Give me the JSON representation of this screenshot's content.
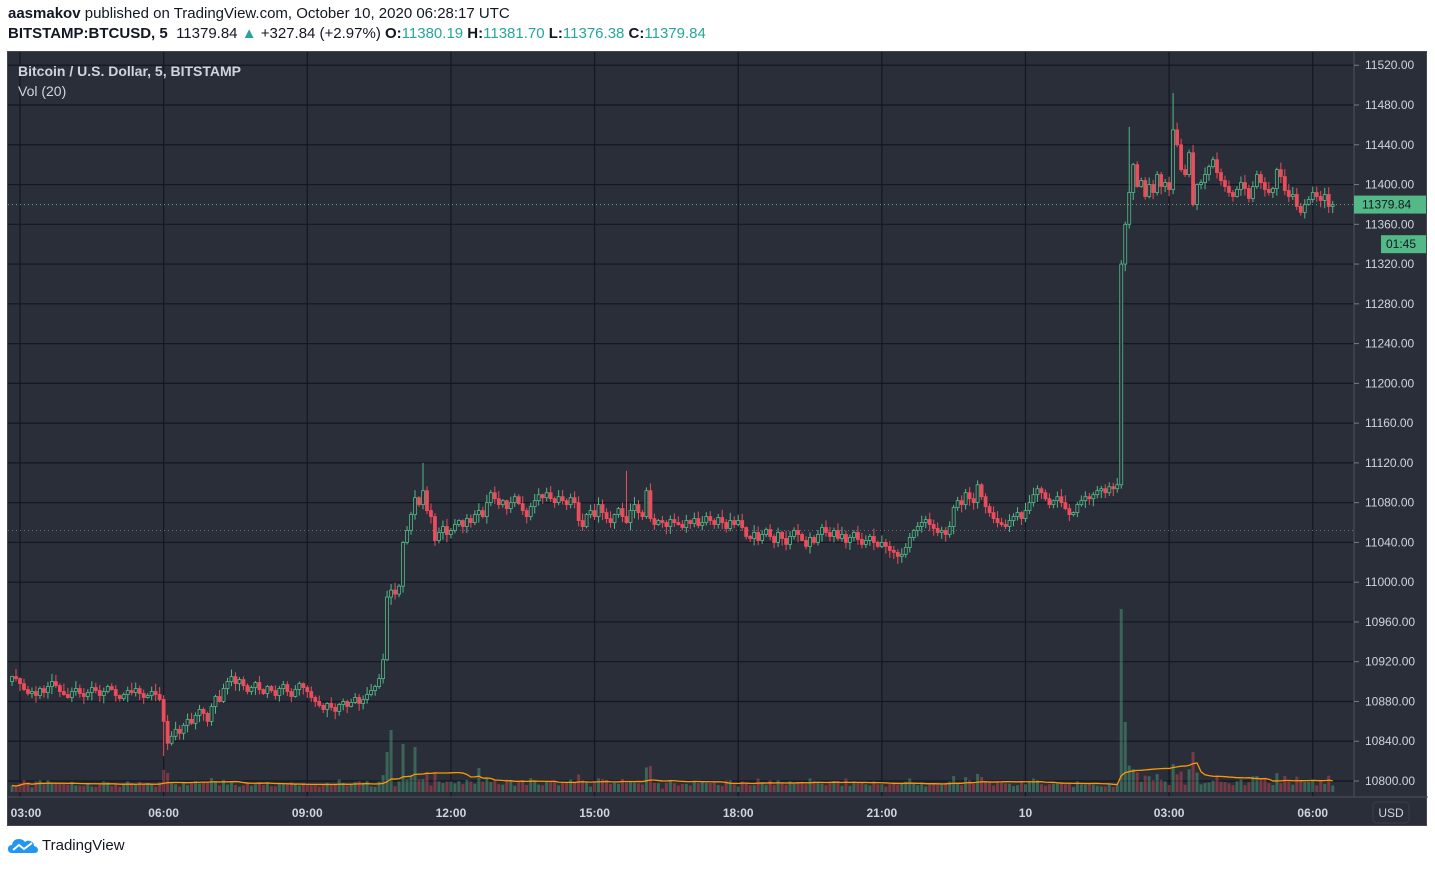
{
  "header": {
    "author": "aasmakov",
    "published": "published on TradingView.com, October 10, 2020 06:28:17 UTC",
    "symbol": "BITSTAMP:BTCUSD, 5",
    "last": "11379.84",
    "change_icon": "triangle-up-icon",
    "change": "+327.84 (+2.97%)",
    "o_label": "O:",
    "o": "11380.19",
    "h_label": "H:",
    "h": "11381.70",
    "l_label": "L:",
    "l": "11376.38",
    "c_label": "C:",
    "c": "11379.84"
  },
  "legend": {
    "title": "Bitcoin / U.S. Dollar, 5, BITSTAMP",
    "vol": "Vol (20)"
  },
  "price_axis": {
    "currency": "USD",
    "last_price_label": "11379.84",
    "countdown": "01:45"
  },
  "footer": {
    "brand": "TradingView",
    "logo_icon": "tradingview-cloud-logo"
  },
  "colors": {
    "up": "#53b987",
    "down": "#eb4d5c",
    "volume_ma": "#ff9800",
    "background": "#2a2e39",
    "last_price": "#53b987"
  },
  "chart_data": {
    "type": "candlestick",
    "interval_minutes": 5,
    "start": "2020-10-09 02:50",
    "ylim": [
      10790,
      11525
    ],
    "yticks": [
      10800,
      10840,
      10880,
      10920,
      10960,
      11000,
      11040,
      11080,
      11120,
      11160,
      11200,
      11240,
      11280,
      11320,
      11360,
      11400,
      11440,
      11480,
      11520
    ],
    "xticks": [
      {
        "label": "03:00",
        "time": "2020-10-09 03:00"
      },
      {
        "label": "06:00",
        "time": "2020-10-09 06:00"
      },
      {
        "label": "09:00",
        "time": "2020-10-09 09:00"
      },
      {
        "label": "12:00",
        "time": "2020-10-09 12:00"
      },
      {
        "label": "15:00",
        "time": "2020-10-09 15:00"
      },
      {
        "label": "18:00",
        "time": "2020-10-09 18:00"
      },
      {
        "label": "21:00",
        "time": "2020-10-09 21:00"
      },
      {
        "label": "10",
        "time": "2020-10-10 00:00"
      },
      {
        "label": "03:00",
        "time": "2020-10-10 03:00"
      },
      {
        "label": "06:00",
        "time": "2020-10-10 06:00"
      }
    ],
    "grid": true,
    "previous_close_line": 11052,
    "last_price": 11379.84,
    "first_open": 10900,
    "closes": [
      10905,
      10903,
      10898,
      10892,
      10888,
      10890,
      10886,
      10893,
      10889,
      10895,
      10900,
      10896,
      10890,
      10887,
      10884,
      10890,
      10893,
      10888,
      10885,
      10889,
      10894,
      10891,
      10886,
      10890,
      10895,
      10892,
      10886,
      10883,
      10887,
      10891,
      10889,
      10893,
      10888,
      10884,
      10886,
      10890,
      10887,
      10882,
      10860,
      10838,
      10845,
      10852,
      10848,
      10856,
      10862,
      10858,
      10866,
      10872,
      10868,
      10860,
      10875,
      10885,
      10880,
      10893,
      10900,
      10905,
      10898,
      10902,
      10896,
      10890,
      10894,
      10899,
      10892,
      10888,
      10895,
      10891,
      10886,
      10893,
      10897,
      10890,
      10885,
      10892,
      10898,
      10894,
      10890,
      10884,
      10880,
      10876,
      10872,
      10878,
      10874,
      10870,
      10877,
      10880,
      10875,
      10879,
      10884,
      10878,
      10882,
      10887,
      10891,
      10895,
      10903,
      10922,
      10985,
      10992,
      10988,
      10996,
      11040,
      11052,
      11068,
      11085,
      11078,
      11092,
      11072,
      11066,
      11042,
      11050,
      11056,
      11048,
      11052,
      11058,
      11062,
      11056,
      11064,
      11060,
      11068,
      11072,
      11066,
      11080,
      11090,
      11084,
      11078,
      11082,
      11074,
      11080,
      11086,
      11079,
      11072,
      11066,
      11076,
      11082,
      11088,
      11085,
      11090,
      11084,
      11080,
      11086,
      11082,
      11078,
      11085,
      11080,
      11062,
      11056,
      11068,
      11072,
      11066,
      11078,
      11070,
      11064,
      11060,
      11068,
      11074,
      11066,
      11060,
      11072,
      11078,
      11070,
      11066,
      11092,
      11064,
      11058,
      11062,
      11060,
      11056,
      11063,
      11060,
      11058,
      11055,
      11062,
      11059,
      11064,
      11057,
      11060,
      11066,
      11062,
      11058,
      11065,
      11060,
      11054,
      11062,
      11058,
      11062,
      11055,
      11046,
      11044,
      11050,
      11042,
      11048,
      11053,
      11046,
      11040,
      11050,
      11044,
      11038,
      11046,
      11052,
      11048,
      11042,
      11036,
      11045,
      11040,
      11048,
      11055,
      11050,
      11046,
      11052,
      11044,
      11048,
      11040,
      11045,
      11050,
      11043,
      11038,
      11042,
      11046,
      11040,
      11036,
      11040,
      11036,
      11032,
      11030,
      11026,
      11028,
      11035,
      11045,
      11052,
      11056,
      11060,
      11063,
      11058,
      11054,
      11050,
      11052,
      11048,
      11056,
      11075,
      11082,
      11078,
      11090,
      11084,
      11080,
      11098,
      11086,
      11076,
      11070,
      11064,
      11060,
      11058,
      11056,
      11062,
      11066,
      11070,
      11064,
      11072,
      11080,
      11088,
      11094,
      11090,
      11084,
      11078,
      11082,
      11086,
      11080,
      11074,
      11068,
      11070,
      11078,
      11082,
      11086,
      11084,
      11088,
      11092,
      11094,
      11090,
      11096,
      11094,
      11098,
      11320,
      11360,
      11392,
      11420,
      11398,
      11404,
      11388,
      11400,
      11392,
      11410,
      11398,
      11402,
      11395,
      11455,
      11440,
      11415,
      11410,
      11432,
      11380,
      11400,
      11402,
      11410,
      11418,
      11425,
      11412,
      11404,
      11398,
      11392,
      11388,
      11395,
      11402,
      11396,
      11386,
      11398,
      11410,
      11402,
      11395,
      11392,
      11396,
      11415,
      11408,
      11394,
      11388,
      11390,
      11378,
      11372,
      11380,
      11385,
      11392,
      11388,
      11384,
      11390,
      11378,
      11379.84
    ],
    "notable_extremes": [
      {
        "time": "2020-10-09 06:00",
        "low": 10825
      },
      {
        "time": "2020-10-09 11:25",
        "high": 11120
      },
      {
        "time": "2020-10-09 15:40",
        "high": 11112
      },
      {
        "time": "2020-10-10 02:10",
        "high": 11458
      },
      {
        "time": "2020-10-10 03:05",
        "high": 11492
      }
    ],
    "volume_series": "Vol (20)",
    "volume_spikes": [
      {
        "time": "2020-10-09 10:45",
        "volume": 62
      },
      {
        "time": "2020-10-09 11:00",
        "volume": 48
      },
      {
        "time": "2020-10-09 11:15",
        "volume": 45
      },
      {
        "time": "2020-10-09 12:35",
        "volume": 24
      },
      {
        "time": "2020-10-10 02:00",
        "volume": 183
      },
      {
        "time": "2020-10-10 02:05",
        "volume": 70
      },
      {
        "time": "2020-10-10 03:05",
        "volume": 28
      }
    ]
  }
}
